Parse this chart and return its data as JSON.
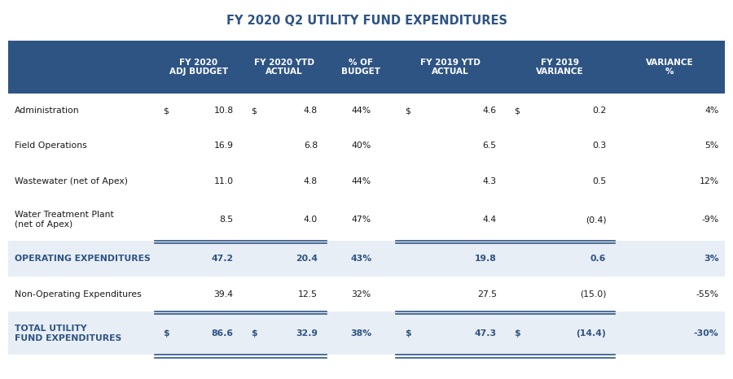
{
  "title": "FY 2020 Q2 UTILITY FUND EXPENDITURES",
  "title_color": "#2E5484",
  "header_bg": "#2E5484",
  "header_text_color": "#FFFFFF",
  "subtotal_bg": "#E8EEF5",
  "subtotal_text_color": "#2E5484",
  "total_bg": "#E8EEF5",
  "total_text_color": "#2E5484",
  "line_color": "#2E5484",
  "header_labels": [
    "FY 2020\nADJ BUDGET",
    "FY 2020 YTD\nACTUAL",
    "% OF\nBUDGET",
    "FY 2019 YTD\nACTUAL",
    "FY 2019\nVARIANCE",
    "VARIANCE\n%"
  ],
  "rows": [
    {
      "label": "Administration",
      "type": "normal",
      "show_dollar": [
        true,
        true,
        true,
        true
      ],
      "values": [
        "10.8",
        "4.8",
        "44%",
        "4.6",
        "0.2",
        "4%"
      ]
    },
    {
      "label": "Field Operations",
      "type": "normal",
      "show_dollar": [
        false,
        false,
        false,
        false
      ],
      "values": [
        "16.9",
        "6.8",
        "40%",
        "6.5",
        "0.3",
        "5%"
      ]
    },
    {
      "label": "Wastewater (net of Apex)",
      "type": "normal",
      "show_dollar": [
        false,
        false,
        false,
        false
      ],
      "values": [
        "11.0",
        "4.8",
        "44%",
        "4.3",
        "0.5",
        "12%"
      ]
    },
    {
      "label": "Water Treatment Plant\n(net of Apex)",
      "type": "normal",
      "show_dollar": [
        false,
        false,
        false,
        false
      ],
      "values": [
        "8.5",
        "4.0",
        "47%",
        "4.4",
        "(0.4)",
        "-9%"
      ]
    },
    {
      "label": "OPERATING EXPENDITURES",
      "type": "subtotal",
      "show_dollar": [
        false,
        false,
        false,
        false
      ],
      "values": [
        "47.2",
        "20.4",
        "43%",
        "19.8",
        "0.6",
        "3%"
      ]
    },
    {
      "label": "Non-Operating Expenditures",
      "type": "normal",
      "show_dollar": [
        false,
        false,
        false,
        false
      ],
      "values": [
        "39.4",
        "12.5",
        "32%",
        "27.5",
        "(15.0)",
        "-55%"
      ]
    },
    {
      "label": "TOTAL UTILITY\nFUND EXPENDITURES",
      "type": "total",
      "show_dollar": [
        true,
        true,
        true,
        true
      ],
      "values": [
        "86.6",
        "32.9",
        "38%",
        "47.3",
        "(14.4)",
        "-30%"
      ]
    }
  ]
}
